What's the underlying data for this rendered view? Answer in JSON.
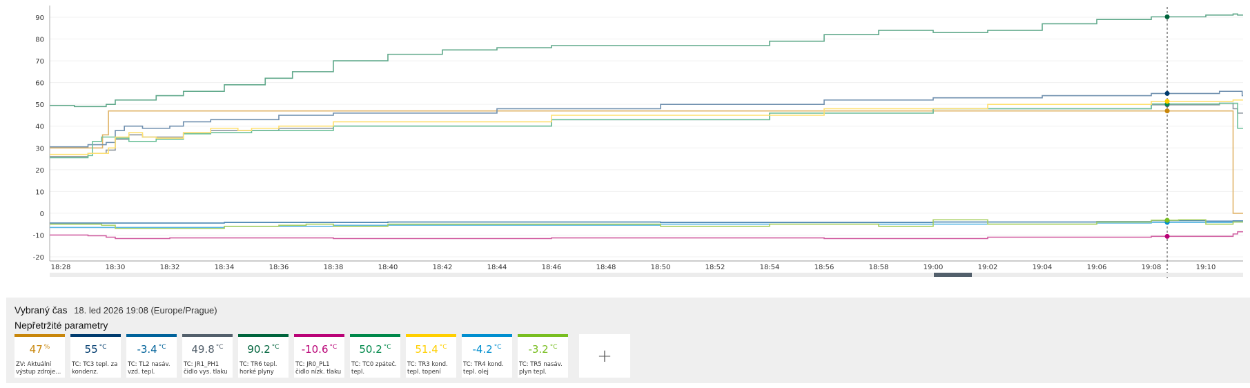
{
  "chart_data": {
    "type": "line",
    "step": true,
    "xlim": [
      "18:27:36",
      "19:11:22"
    ],
    "ylim": [
      -22,
      95
    ],
    "yticks": [
      -20,
      -10,
      0,
      10,
      20,
      30,
      40,
      50,
      60,
      70,
      80,
      90
    ],
    "xticks": [
      "18:28",
      "18:30",
      "18:32",
      "18:34",
      "18:36",
      "18:38",
      "18:40",
      "18:42",
      "18:44",
      "18:46",
      "18:48",
      "18:50",
      "18:52",
      "18:54",
      "18:56",
      "18:58",
      "19:00",
      "19:02",
      "19:04",
      "19:06",
      "19:08",
      "19:10"
    ],
    "grid": true,
    "cursor_time": "19:08:35",
    "series": [
      {
        "id": "zv",
        "color": "#e0b468",
        "marker": "#c8860a",
        "points": [
          [
            "18:27:36",
            30
          ],
          [
            "18:29:32",
            36
          ],
          [
            "18:29:45",
            47
          ],
          [
            "19:11:00",
            0
          ]
        ]
      },
      {
        "id": "tc3",
        "color": "#6f8fae",
        "marker": "#003b6e",
        "points": [
          [
            "18:27:36",
            30.5
          ],
          [
            "18:29:00",
            31.5
          ],
          [
            "18:29:40",
            32.5
          ],
          [
            "18:30:00",
            38
          ],
          [
            "18:30:20",
            40
          ],
          [
            "18:31:00",
            39
          ],
          [
            "18:32:00",
            40
          ],
          [
            "18:32:30",
            42
          ],
          [
            "18:33:30",
            43
          ],
          [
            "18:36:00",
            45
          ],
          [
            "18:38:00",
            46
          ],
          [
            "18:44:00",
            48
          ],
          [
            "18:50:00",
            50
          ],
          [
            "18:56:00",
            52
          ],
          [
            "19:00:00",
            53
          ],
          [
            "19:04:00",
            54
          ],
          [
            "19:08:00",
            55
          ],
          [
            "19:10:30",
            56
          ],
          [
            "19:11:20",
            54
          ]
        ]
      },
      {
        "id": "tl2",
        "color": "#4a86b4",
        "marker": "#00629a",
        "points": [
          [
            "18:27:36",
            -4.5
          ],
          [
            "18:34:00",
            -4.2
          ],
          [
            "18:40:00",
            -4
          ],
          [
            "18:50:00",
            -4.2
          ],
          [
            "19:00:00",
            -4
          ],
          [
            "19:06:00",
            -3.8
          ],
          [
            "19:08:00",
            -3.4
          ],
          [
            "19:10:00",
            -3.6
          ],
          [
            "19:11:00",
            -3.5
          ]
        ]
      },
      {
        "id": "jr1",
        "color": "#8c959e",
        "marker": "#525f6b",
        "points": [
          [
            "18:27:36",
            26
          ],
          [
            "18:29:00",
            27.5
          ],
          [
            "18:29:40",
            29
          ],
          [
            "18:30:00",
            34
          ],
          [
            "18:30:30",
            36
          ],
          [
            "18:31:00",
            35
          ],
          [
            "18:31:30",
            35
          ],
          [
            "18:32:30",
            37
          ],
          [
            "18:33:30",
            38
          ],
          [
            "18:36:00",
            39
          ],
          [
            "18:38:00",
            40
          ],
          [
            "18:46:00",
            43
          ],
          [
            "18:54:00",
            46
          ],
          [
            "19:00:00",
            48
          ],
          [
            "19:08:00",
            49.8
          ],
          [
            "19:10:30",
            50.5
          ],
          [
            "19:11:00",
            48
          ],
          [
            "19:11:10",
            46
          ]
        ]
      },
      {
        "id": "tr6",
        "color": "#5fa88a",
        "marker": "#00643c",
        "points": [
          [
            "18:27:36",
            49.5
          ],
          [
            "18:28:30",
            49
          ],
          [
            "18:29:40",
            50
          ],
          [
            "18:30:00",
            52
          ],
          [
            "18:31:30",
            54
          ],
          [
            "18:32:30",
            56
          ],
          [
            "18:34:00",
            59
          ],
          [
            "18:35:30",
            62
          ],
          [
            "18:36:30",
            65
          ],
          [
            "18:38:00",
            70
          ],
          [
            "18:40:00",
            73
          ],
          [
            "18:42:00",
            75
          ],
          [
            "18:44:00",
            76
          ],
          [
            "18:46:00",
            77
          ],
          [
            "18:50:00",
            77
          ],
          [
            "18:54:00",
            79
          ],
          [
            "18:56:00",
            82
          ],
          [
            "18:58:00",
            84
          ],
          [
            "19:00:00",
            83
          ],
          [
            "19:02:00",
            84
          ],
          [
            "19:04:00",
            87
          ],
          [
            "19:06:00",
            89
          ],
          [
            "19:08:00",
            90.2
          ],
          [
            "19:10:00",
            91
          ],
          [
            "19:11:00",
            91.5
          ],
          [
            "19:11:10",
            91
          ]
        ]
      },
      {
        "id": "jr0",
        "color": "#d160a2",
        "marker": "#b90276",
        "points": [
          [
            "18:27:36",
            -10
          ],
          [
            "18:29:00",
            -10.3
          ],
          [
            "18:29:40",
            -11
          ],
          [
            "18:30:00",
            -11.6
          ],
          [
            "18:32:00",
            -11.3
          ],
          [
            "18:38:00",
            -11.6
          ],
          [
            "18:46:00",
            -11.3
          ],
          [
            "18:56:00",
            -11.6
          ],
          [
            "19:02:00",
            -11
          ],
          [
            "19:08:00",
            -10.6
          ],
          [
            "19:11:00",
            -9.5
          ],
          [
            "19:11:10",
            -8.5
          ]
        ]
      },
      {
        "id": "tc0",
        "color": "#6cc09a",
        "marker": "#00884a",
        "points": [
          [
            "18:27:36",
            25.5
          ],
          [
            "18:29:00",
            26.5
          ],
          [
            "18:29:10",
            33
          ],
          [
            "18:29:30",
            35
          ],
          [
            "18:30:00",
            34.5
          ],
          [
            "18:30:30",
            33
          ],
          [
            "18:31:00",
            33
          ],
          [
            "18:31:30",
            34
          ],
          [
            "18:32:30",
            36.5
          ],
          [
            "18:33:30",
            37
          ],
          [
            "18:35:00",
            38
          ],
          [
            "18:38:00",
            40
          ],
          [
            "18:46:00",
            43
          ],
          [
            "18:54:00",
            46
          ],
          [
            "19:00:00",
            48
          ],
          [
            "19:08:00",
            50.2
          ],
          [
            "19:10:30",
            50.5
          ],
          [
            "19:11:10",
            39
          ]
        ]
      },
      {
        "id": "tr3",
        "color": "#ffe070",
        "marker": "#ffcf00",
        "points": [
          [
            "18:27:36",
            27
          ],
          [
            "18:29:00",
            27.5
          ],
          [
            "18:29:45",
            30
          ],
          [
            "18:30:00",
            35
          ],
          [
            "18:30:30",
            37
          ],
          [
            "18:31:00",
            35
          ],
          [
            "18:31:30",
            34.5
          ],
          [
            "18:32:30",
            37
          ],
          [
            "18:33:30",
            39
          ],
          [
            "18:34:30",
            38
          ],
          [
            "18:35:00",
            39
          ],
          [
            "18:36:00",
            40
          ],
          [
            "18:38:00",
            42
          ],
          [
            "18:46:00",
            45
          ],
          [
            "18:56:00",
            48
          ],
          [
            "19:02:00",
            50
          ],
          [
            "19:08:00",
            51.4
          ],
          [
            "19:11:00",
            52
          ]
        ]
      },
      {
        "id": "tr4",
        "color": "#5db8e4",
        "marker": "#008ecf",
        "points": [
          [
            "18:27:36",
            -6.5
          ],
          [
            "18:34:00",
            -6
          ],
          [
            "18:38:00",
            -5.5
          ],
          [
            "18:50:00",
            -5
          ],
          [
            "19:06:00",
            -4.5
          ],
          [
            "19:08:00",
            -4.2
          ],
          [
            "19:11:00",
            -4
          ]
        ]
      },
      {
        "id": "tr5",
        "color": "#a8d060",
        "marker": "#78be20",
        "points": [
          [
            "18:27:36",
            -5
          ],
          [
            "18:29:30",
            -5.5
          ],
          [
            "18:30:00",
            -7
          ],
          [
            "18:32:00",
            -7
          ],
          [
            "18:34:00",
            -6
          ],
          [
            "18:36:00",
            -5.5
          ],
          [
            "18:37:00",
            -5
          ],
          [
            "18:38:00",
            -6
          ],
          [
            "18:40:00",
            -5
          ],
          [
            "18:50:00",
            -6
          ],
          [
            "18:54:00",
            -5
          ],
          [
            "18:58:00",
            -6
          ],
          [
            "19:00:00",
            -3
          ],
          [
            "19:02:00",
            -5
          ],
          [
            "19:06:00",
            -4
          ],
          [
            "19:08:00",
            -3.2
          ],
          [
            "19:09:00",
            -3
          ],
          [
            "19:10:00",
            -5
          ],
          [
            "19:11:00",
            -4
          ]
        ]
      }
    ]
  },
  "selection": {
    "label": "Vybraný čas",
    "value": "18. led 2026 19:08 (Europe/Prague)"
  },
  "section_title": "Nepřetržité parametry",
  "cards": [
    {
      "value": "47",
      "unit": "%",
      "label": "ZV: Aktuální výstup zdroje...",
      "color": "#c8860a"
    },
    {
      "value": "55",
      "unit": "°C",
      "label": "TČ: TC3 tepl. za kondenz.",
      "color": "#003b6e"
    },
    {
      "value": "-3.4",
      "unit": "°C",
      "label": "TČ: TL2 nasáv. vzd. tepl.",
      "color": "#00629a"
    },
    {
      "value": "49.8",
      "unit": "°C",
      "label": "TČ: JR1_PH1 čidlo vys. tlaku",
      "color": "#525f6b"
    },
    {
      "value": "90.2",
      "unit": "°C",
      "label": "TČ: TR6 tepl. horké plyny",
      "color": "#00643c"
    },
    {
      "value": "-10.6",
      "unit": "°C",
      "label": "TČ: JR0_PL1 čidlo nízk. tlaku",
      "color": "#b90276"
    },
    {
      "value": "50.2",
      "unit": "°C",
      "label": "TČ: TC0 zpáteč. tepl.",
      "color": "#00884a"
    },
    {
      "value": "51.4",
      "unit": "°C",
      "label": "TČ: TR3 kond. tepl. topení",
      "color": "#ffcf00"
    },
    {
      "value": "-4.2",
      "unit": "°C",
      "label": "TČ: TR4 kond. tepl. olej",
      "color": "#008ecf"
    },
    {
      "value": "-3.2",
      "unit": "°C",
      "label": "TČ: TR5 nasáv. plyn tepl.",
      "color": "#78be20"
    }
  ],
  "add_button": {
    "label": "+",
    "icon": "plus-icon"
  }
}
